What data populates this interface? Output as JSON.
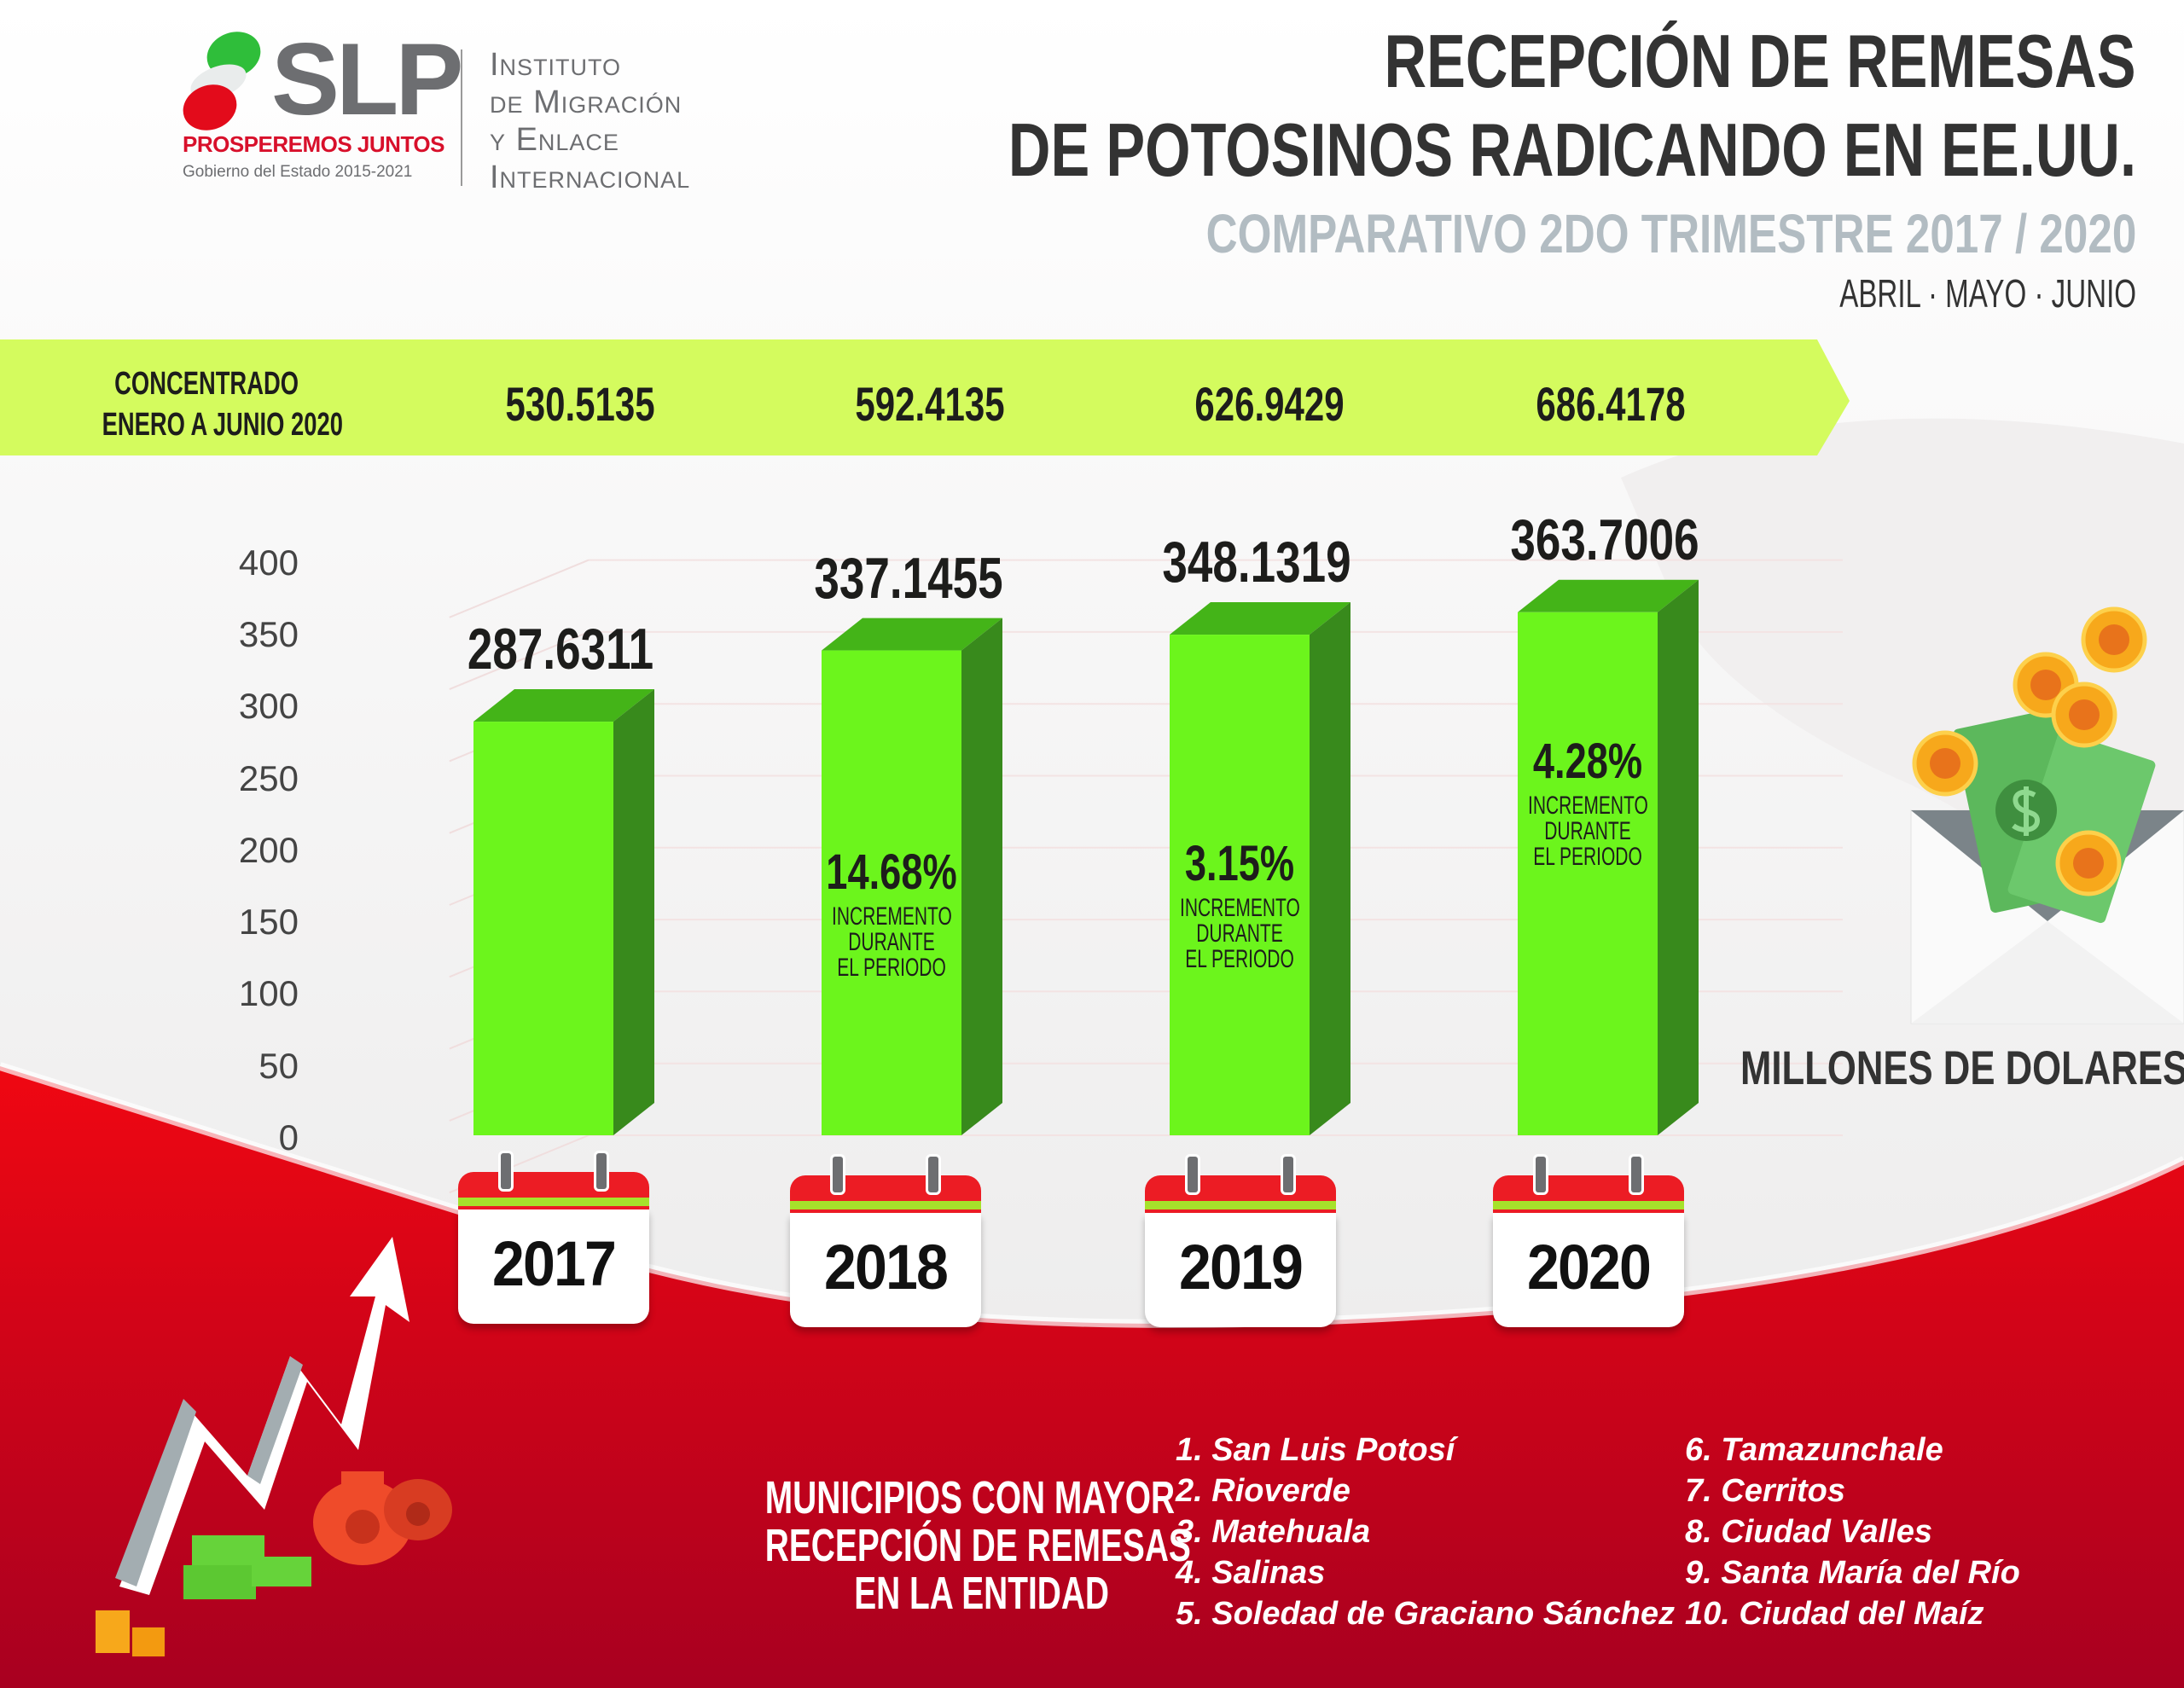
{
  "header": {
    "logo": {
      "brand": "SLP",
      "tagline": "PROSPEREMOS JUNTOS",
      "government": "Gobierno del Estado 2015-2021",
      "institute_lines": [
        "Instituto",
        "de Migración",
        "y Enlace",
        "Internacional"
      ]
    },
    "title_line1": "RECEPCIÓN DE REMESAS",
    "title_line2": "DE POTOSINOS RADICANDO EN EE.UU.",
    "subtitle": "COMPARATIVO 2DO TRIMESTRE 2017 / 2020",
    "months": "ABRIL · MAYO · JUNIO"
  },
  "band": {
    "label_line1": "CONCENTRADO",
    "label_line2": "ENERO A JUNIO 2020",
    "values": [
      "530.5135",
      "592.4135",
      "626.9429",
      "686.4178"
    ]
  },
  "units_label": "MILLONES DE DOLARES",
  "colors": {
    "bar_front": "#6cf51c",
    "bar_side": "#388a1c",
    "bar_top": "#44b418",
    "band": "#d4fb5e",
    "red": "#e60014"
  },
  "chart_data": {
    "type": "bar",
    "title": "Recepción de remesas de potosinos radicando en EE.UU. — 2do trimestre",
    "xlabel": "",
    "ylabel": "Millones de dolares",
    "categories": [
      "2017",
      "2018",
      "2019",
      "2020"
    ],
    "values": [
      287.6311,
      337.1455,
      348.1319,
      363.7006
    ],
    "value_labels": [
      "287.6311",
      "337.1455",
      "348.1319",
      "363.7006"
    ],
    "increments": [
      null,
      "14.68%",
      "3.15%",
      "4.28%"
    ],
    "increment_caption": [
      "INCREMENTO",
      "DURANTE",
      "EL PERIODO"
    ],
    "ylim": [
      0,
      400
    ],
    "yticks": [
      0,
      50,
      100,
      150,
      200,
      250,
      300,
      350,
      400
    ],
    "grid": true,
    "style": "3d-column"
  },
  "municipios": {
    "title_lines": [
      "MUNICIPIOS CON MAYOR",
      "RECEPCIÓN DE REMESAS",
      "EN LA ENTIDAD"
    ],
    "list": [
      "1. San Luis Potosí",
      "2. Rioverde",
      "3. Matehuala",
      "4. Salinas",
      "5. Soledad de Graciano Sánchez",
      "6. Tamazunchale",
      "7. Cerritos",
      "8. Ciudad Valles",
      "9. Santa María del Río",
      "10. Ciudad del Maíz"
    ]
  }
}
